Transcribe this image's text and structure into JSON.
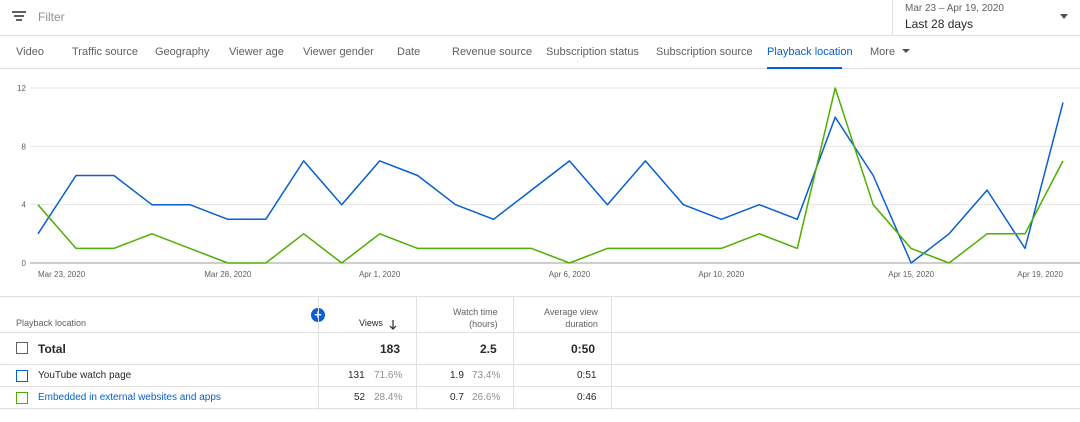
{
  "filter": {
    "placeholder": "Filter",
    "icon": "filter-icon"
  },
  "date": {
    "range": "Mar 23 – Apr 19, 2020",
    "preset": "Last 28 days"
  },
  "tabs": [
    {
      "label": "Video"
    },
    {
      "label": "Traffic source"
    },
    {
      "label": "Geography"
    },
    {
      "label": "Viewer age"
    },
    {
      "label": "Viewer gender"
    },
    {
      "label": "Date"
    },
    {
      "label": "Revenue source"
    },
    {
      "label": "Subscription status"
    },
    {
      "label": "Subscription source"
    },
    {
      "label": "Playback location",
      "active": true
    },
    {
      "label": "More"
    }
  ],
  "colors": {
    "accent": "#065fd4",
    "series_watch_page": "#065fd4",
    "series_embedded": "#4eae00"
  },
  "chart_data": {
    "type": "line",
    "x": [
      "Mar 23, 2020",
      "Mar 24, 2020",
      "Mar 25, 2020",
      "Mar 26, 2020",
      "Mar 27, 2020",
      "Mar 28, 2020",
      "Mar 29, 2020",
      "Mar 30, 2020",
      "Mar 31, 2020",
      "Apr 1, 2020",
      "Apr 2, 2020",
      "Apr 3, 2020",
      "Apr 4, 2020",
      "Apr 5, 2020",
      "Apr 6, 2020",
      "Apr 7, 2020",
      "Apr 8, 2020",
      "Apr 9, 2020",
      "Apr 10, 2020",
      "Apr 11, 2020",
      "Apr 12, 2020",
      "Apr 13, 2020",
      "Apr 14, 2020",
      "Apr 15, 2020",
      "Apr 16, 2020",
      "Apr 17, 2020",
      "Apr 18, 2020",
      "Apr 19, 2020"
    ],
    "x_tick_labels": [
      "Mar 23, 2020",
      "Mar 28, 2020",
      "Apr 1, 2020",
      "Apr 6, 2020",
      "Apr 10, 2020",
      "Apr 15, 2020",
      "Apr 19, 2020"
    ],
    "series": [
      {
        "values": [
          2,
          6,
          6,
          4,
          4,
          3,
          3,
          7,
          4,
          7,
          6,
          4,
          3,
          5,
          7,
          4,
          7,
          4,
          3,
          4,
          3,
          10,
          6,
          0,
          2,
          5,
          1,
          11
        ]
      },
      {
        "values": [
          4,
          1,
          1,
          2,
          1,
          0,
          0,
          2,
          0,
          2,
          1,
          1,
          1,
          1,
          0,
          1,
          1,
          1,
          1,
          2,
          1,
          12,
          4,
          1,
          0,
          2,
          2,
          7
        ]
      }
    ],
    "y_ticks": [
      0,
      4,
      8,
      12
    ],
    "ylim": [
      0,
      12
    ],
    "grid": true
  },
  "table": {
    "headers": {
      "dimension": "Playback location",
      "views": "Views",
      "watch_time_line1": "Watch time",
      "watch_time_line2": "(hours)",
      "avd_line1": "Average view",
      "avd_line2": "duration"
    },
    "total": {
      "label": "Total",
      "views": "183",
      "watch_time": "2.5",
      "avd": "0:50"
    },
    "rows": [
      {
        "label": "YouTube watch page",
        "views": "131",
        "views_pct": "71.6%",
        "watch_time": "1.9",
        "watch_pct": "73.4%",
        "avd": "0:51"
      },
      {
        "label": "Embedded in external websites and apps",
        "views": "52",
        "views_pct": "28.4%",
        "watch_time": "0.7",
        "watch_pct": "26.6%",
        "avd": "0:46"
      }
    ]
  }
}
